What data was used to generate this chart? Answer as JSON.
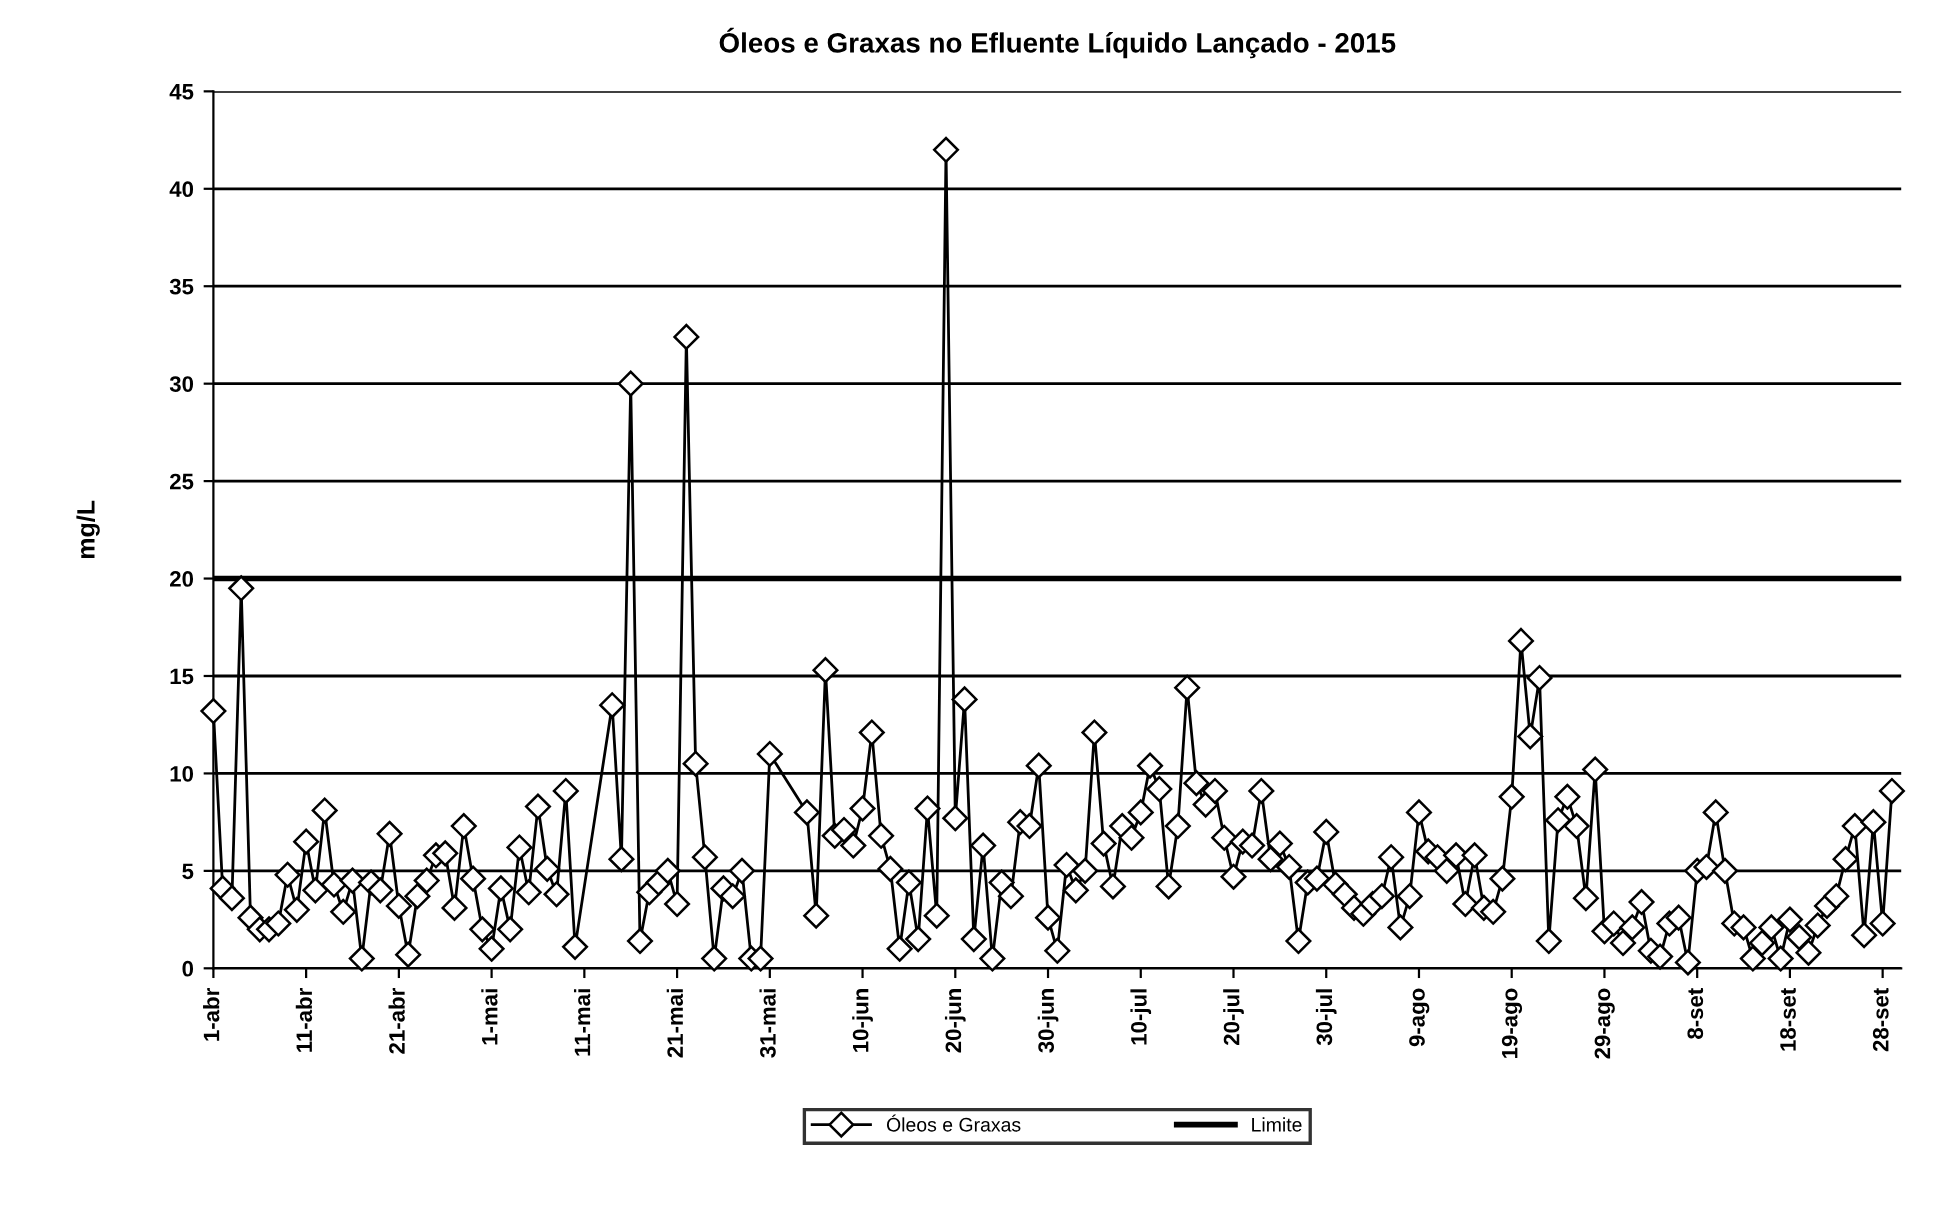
{
  "chart_data": {
    "type": "line",
    "title": "Óleos e Graxas no Efluente Líquido Lançado - 2015",
    "ylabel": "mg/L",
    "xlim": [
      "2015-04-01",
      "2015-09-30"
    ],
    "xticks": [
      {
        "value": "2015-04-01",
        "label": "1-abr"
      },
      {
        "value": "2015-04-11",
        "label": "11-abr"
      },
      {
        "value": "2015-04-21",
        "label": "21-abr"
      },
      {
        "value": "2015-05-01",
        "label": "1-mai"
      },
      {
        "value": "2015-05-11",
        "label": "11-mai"
      },
      {
        "value": "2015-05-21",
        "label": "21-mai"
      },
      {
        "value": "2015-05-31",
        "label": "31-mai"
      },
      {
        "value": "2015-06-10",
        "label": "10-jun"
      },
      {
        "value": "2015-06-20",
        "label": "20-jun"
      },
      {
        "value": "2015-06-30",
        "label": "30-jun"
      },
      {
        "value": "2015-07-10",
        "label": "10-jul"
      },
      {
        "value": "2015-07-20",
        "label": "20-jul"
      },
      {
        "value": "2015-07-30",
        "label": "30-jul"
      },
      {
        "value": "2015-08-09",
        "label": "9-ago"
      },
      {
        "value": "2015-08-19",
        "label": "19-ago"
      },
      {
        "value": "2015-08-29",
        "label": "29-ago"
      },
      {
        "value": "2015-09-08",
        "label": "8-set"
      },
      {
        "value": "2015-09-18",
        "label": "18-set"
      },
      {
        "value": "2015-09-28",
        "label": "28-set"
      }
    ],
    "ylim": [
      0,
      45
    ],
    "yticks": [
      0,
      5,
      10,
      15,
      20,
      25,
      30,
      35,
      40,
      45
    ],
    "grid": "y",
    "legend": "bottom",
    "marker": "diamond",
    "line_style": "solid",
    "ref_lines": [
      {
        "axis": "y",
        "value": 20,
        "label": "Limite",
        "color": "#000000",
        "line_style": "solid"
      }
    ],
    "series": [
      {
        "name": "Óleos e Graxas",
        "color": "#000000",
        "x": [
          "2015-04-01",
          "2015-04-02",
          "2015-04-03",
          "2015-04-04",
          "2015-04-05",
          "2015-04-06",
          "2015-04-07",
          "2015-04-08",
          "2015-04-09",
          "2015-04-10",
          "2015-04-11",
          "2015-04-12",
          "2015-04-13",
          "2015-04-14",
          "2015-04-15",
          "2015-04-16",
          "2015-04-17",
          "2015-04-18",
          "2015-04-19",
          "2015-04-20",
          "2015-04-21",
          "2015-04-22",
          "2015-04-23",
          "2015-04-24",
          "2015-04-25",
          "2015-04-26",
          "2015-04-27",
          "2015-04-28",
          "2015-04-29",
          "2015-04-30",
          "2015-05-01",
          "2015-05-02",
          "2015-05-03",
          "2015-05-04",
          "2015-05-05",
          "2015-05-06",
          "2015-05-07",
          "2015-05-08",
          "2015-05-09",
          "2015-05-10",
          "2015-05-14",
          "2015-05-15",
          "2015-05-16",
          "2015-05-17",
          "2015-05-18",
          "2015-05-19",
          "2015-05-20",
          "2015-05-21",
          "2015-05-22",
          "2015-05-23",
          "2015-05-24",
          "2015-05-25",
          "2015-05-26",
          "2015-05-27",
          "2015-05-28",
          "2015-05-29",
          "2015-05-30",
          "2015-05-31",
          "2015-06-04",
          "2015-06-05",
          "2015-06-06",
          "2015-06-07",
          "2015-06-08",
          "2015-06-09",
          "2015-06-10",
          "2015-06-11",
          "2015-06-12",
          "2015-06-13",
          "2015-06-14",
          "2015-06-15",
          "2015-06-16",
          "2015-06-17",
          "2015-06-18",
          "2015-06-19",
          "2015-06-20",
          "2015-06-21",
          "2015-06-22",
          "2015-06-23",
          "2015-06-24",
          "2015-06-25",
          "2015-06-26",
          "2015-06-27",
          "2015-06-28",
          "2015-06-29",
          "2015-06-30",
          "2015-07-01",
          "2015-07-02",
          "2015-07-03",
          "2015-07-04",
          "2015-07-05",
          "2015-07-06",
          "2015-07-07",
          "2015-07-08",
          "2015-07-09",
          "2015-07-10",
          "2015-07-11",
          "2015-07-12",
          "2015-07-13",
          "2015-07-14",
          "2015-07-15",
          "2015-07-16",
          "2015-07-17",
          "2015-07-18",
          "2015-07-19",
          "2015-07-20",
          "2015-07-21",
          "2015-07-22",
          "2015-07-23",
          "2015-07-24",
          "2015-07-25",
          "2015-07-26",
          "2015-07-27",
          "2015-07-28",
          "2015-07-29",
          "2015-07-30",
          "2015-07-31",
          "2015-08-01",
          "2015-08-02",
          "2015-08-03",
          "2015-08-04",
          "2015-08-05",
          "2015-08-06",
          "2015-08-07",
          "2015-08-08",
          "2015-08-09",
          "2015-08-10",
          "2015-08-11",
          "2015-08-12",
          "2015-08-13",
          "2015-08-14",
          "2015-08-15",
          "2015-08-16",
          "2015-08-17",
          "2015-08-18",
          "2015-08-19",
          "2015-08-20",
          "2015-08-21",
          "2015-08-22",
          "2015-08-23",
          "2015-08-24",
          "2015-08-25",
          "2015-08-26",
          "2015-08-27",
          "2015-08-28",
          "2015-08-29",
          "2015-08-30",
          "2015-08-31",
          "2015-09-01",
          "2015-09-02",
          "2015-09-03",
          "2015-09-04",
          "2015-09-05",
          "2015-09-06",
          "2015-09-07",
          "2015-09-08",
          "2015-09-09",
          "2015-09-10",
          "2015-09-11",
          "2015-09-12",
          "2015-09-13",
          "2015-09-14",
          "2015-09-15",
          "2015-09-16",
          "2015-09-17",
          "2015-09-18",
          "2015-09-19",
          "2015-09-20",
          "2015-09-21",
          "2015-09-22",
          "2015-09-23",
          "2015-09-24",
          "2015-09-25",
          "2015-09-26",
          "2015-09-27",
          "2015-09-28",
          "2015-09-29"
        ],
        "values": [
          13.2,
          4.1,
          3.6,
          19.5,
          2.6,
          2.0,
          2.0,
          2.3,
          4.8,
          3.0,
          6.5,
          4.0,
          8.1,
          4.3,
          2.9,
          4.5,
          0.5,
          4.4,
          4.0,
          6.9,
          3.2,
          0.7,
          3.7,
          4.5,
          5.8,
          5.9,
          3.1,
          7.3,
          4.6,
          2.0,
          1.0,
          4.1,
          2.0,
          6.2,
          3.9,
          8.3,
          5.1,
          3.8,
          9.1,
          1.1,
          13.5,
          5.6,
          30,
          1.4,
          3.9,
          4.4,
          5.0,
          3.3,
          32.4,
          10.5,
          5.7,
          0.5,
          4.1,
          3.7,
          5.0,
          0.5,
          0.5,
          11.0,
          8.0,
          2.7,
          15.3,
          6.8,
          7.1,
          6.3,
          8.2,
          12.1,
          6.8,
          5.1,
          1.0,
          4.4,
          1.5,
          8.2,
          2.7,
          42,
          7.7,
          13.8,
          1.5,
          6.3,
          0.5,
          4.4,
          3.7,
          7.5,
          7.3,
          10.4,
          2.6,
          0.9,
          5.3,
          4.0,
          5.0,
          12.1,
          6.4,
          4.2,
          7.3,
          6.7,
          8.0,
          10.4,
          9.2,
          4.2,
          7.3,
          14.4,
          9.5,
          8.4,
          9.1,
          6.7,
          4.7,
          6.5,
          6.3,
          9.1,
          5.6,
          6.4,
          5.2,
          1.4,
          4.4,
          4.6,
          7.0,
          4.3,
          3.8,
          3.1,
          2.8,
          3.3,
          3.7,
          5.7,
          2.1,
          3.7,
          8.0,
          6.0,
          5.7,
          5.0,
          5.8,
          3.3,
          5.8,
          3.1,
          2.9,
          4.6,
          8.8,
          16.8,
          11.9,
          14.9,
          1.4,
          7.6,
          8.8,
          7.3,
          3.6,
          10.2,
          1.9,
          2.3,
          1.3,
          2.1,
          3.4,
          0.9,
          0.6,
          2.3,
          2.6,
          0.3,
          5.0,
          5.2,
          8.0,
          5.0,
          2.3,
          2.1,
          0.5,
          1.3,
          2.1,
          0.5,
          2.5,
          1.6,
          0.8,
          2.2,
          3.2,
          3.7,
          5.6,
          7.3,
          1.7,
          7.5,
          2.3,
          9.1
        ]
      }
    ]
  }
}
